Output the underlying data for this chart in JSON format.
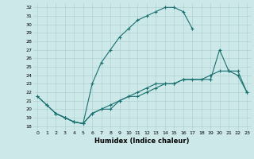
{
  "xlabel": "Humidex (Indice chaleur)",
  "bg_color": "#cce8e8",
  "line_color": "#1a7070",
  "grid_color": "#aacccc",
  "xlim": [
    -0.5,
    23.5
  ],
  "ylim": [
    17.5,
    32.5
  ],
  "xticks": [
    0,
    1,
    2,
    3,
    4,
    5,
    6,
    7,
    8,
    9,
    10,
    11,
    12,
    13,
    14,
    15,
    16,
    17,
    18,
    19,
    20,
    21,
    22,
    23
  ],
  "yticks": [
    18,
    19,
    20,
    21,
    22,
    23,
    24,
    25,
    26,
    27,
    28,
    29,
    30,
    31,
    32
  ],
  "line1_x": [
    0,
    1,
    2,
    3,
    4,
    5,
    6,
    7,
    8,
    9,
    10,
    11,
    12,
    13,
    14,
    15,
    16,
    17
  ],
  "line1_y": [
    21.5,
    20.5,
    19.5,
    19.0,
    18.5,
    18.3,
    23.0,
    25.5,
    27.0,
    28.5,
    29.5,
    30.5,
    31.0,
    31.5,
    32.0,
    32.0,
    31.5,
    29.5
  ],
  "line2_x": [
    2,
    3,
    4,
    5,
    6,
    7,
    8,
    9,
    10,
    11,
    12,
    13,
    14,
    15,
    16,
    19,
    20,
    21,
    22,
    23
  ],
  "line2_y": [
    19.5,
    19.0,
    18.5,
    18.3,
    19.5,
    20.0,
    20.0,
    21.0,
    21.5,
    21.5,
    22.0,
    22.5,
    23.0,
    23.0,
    23.5,
    23.5,
    27.0,
    24.5,
    24.0,
    22.0
  ],
  "line3_x": [
    0,
    1,
    2,
    3,
    4,
    5,
    6,
    7,
    8,
    9,
    10,
    11,
    12,
    13,
    14,
    15,
    16,
    17,
    18,
    19,
    20,
    21,
    22,
    23
  ],
  "line3_y": [
    21.5,
    20.5,
    19.5,
    19.0,
    18.5,
    18.3,
    19.5,
    20.0,
    20.5,
    21.0,
    21.5,
    22.0,
    22.5,
    23.0,
    23.0,
    23.0,
    23.5,
    23.5,
    23.5,
    24.0,
    24.5,
    24.5,
    24.5,
    22.0
  ],
  "tick_fontsize": 4.5,
  "xlabel_fontsize": 6.0
}
